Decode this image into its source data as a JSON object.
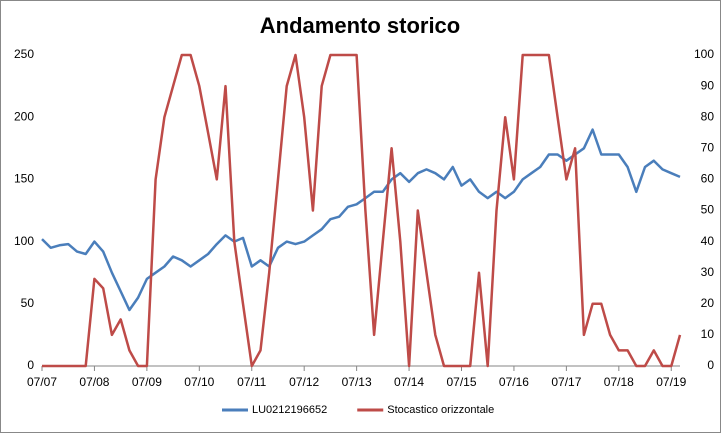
{
  "chart_data": {
    "type": "line",
    "title": "Andamento storico",
    "x": [
      0,
      2,
      4,
      6,
      8,
      10,
      12,
      14,
      16,
      18,
      20,
      22,
      24,
      26,
      28,
      30,
      32,
      34,
      36,
      38,
      40,
      42,
      44,
      46,
      48,
      50,
      52,
      54,
      56,
      58,
      60,
      62,
      64,
      66,
      68,
      70,
      72,
      74,
      76,
      78,
      80,
      82,
      84,
      86,
      88,
      90,
      92,
      94,
      96,
      98,
      100,
      102,
      104,
      106,
      108,
      110,
      112,
      114,
      116,
      118,
      120,
      122,
      124,
      126,
      128,
      130,
      132,
      134,
      136,
      138,
      140,
      142,
      144,
      146
    ],
    "xlim": [
      0,
      146
    ],
    "xticks": [
      {
        "value": 0,
        "label": "07/07"
      },
      {
        "value": 12,
        "label": "07/08"
      },
      {
        "value": 24,
        "label": "07/09"
      },
      {
        "value": 36,
        "label": "07/10"
      },
      {
        "value": 48,
        "label": "07/11"
      },
      {
        "value": 60,
        "label": "07/12"
      },
      {
        "value": 72,
        "label": "07/13"
      },
      {
        "value": 84,
        "label": "07/14"
      },
      {
        "value": 96,
        "label": "07/15"
      },
      {
        "value": 108,
        "label": "07/16"
      },
      {
        "value": 120,
        "label": "07/17"
      },
      {
        "value": 132,
        "label": "07/18"
      },
      {
        "value": 144,
        "label": "07/19"
      }
    ],
    "ylim": [
      0,
      250
    ],
    "yticks": [
      0,
      50,
      100,
      150,
      200,
      250
    ],
    "y2lim": [
      0,
      100
    ],
    "y2ticks": [
      0,
      10,
      20,
      30,
      40,
      50,
      60,
      70,
      80,
      90,
      100
    ],
    "grid": false,
    "legend": "bottom",
    "series": [
      {
        "name": "LU0212196652",
        "color": "#4a7ebb",
        "values": [
          102,
          95,
          97,
          98,
          92,
          90,
          100,
          92,
          75,
          60,
          45,
          55,
          70,
          75,
          80,
          88,
          85,
          80,
          85,
          90,
          98,
          105,
          100,
          103,
          80,
          85,
          80,
          95,
          100,
          98,
          100,
          105,
          110,
          118,
          120,
          128,
          130,
          135,
          140,
          140,
          150,
          155,
          148,
          155,
          158,
          155,
          150,
          160,
          145,
          150,
          140,
          135,
          140,
          135,
          140,
          150,
          155,
          160,
          170,
          170,
          165,
          170,
          175,
          190,
          170,
          170,
          170,
          160,
          140,
          160,
          165,
          158,
          155,
          152
        ]
      },
      {
        "name": "Stocastico orizzontale",
        "color": "#be4b48",
        "axis": "y2",
        "values": [
          0,
          0,
          0,
          0,
          0,
          0,
          28,
          25,
          10,
          15,
          5,
          0,
          0,
          60,
          80,
          90,
          100,
          100,
          90,
          75,
          60,
          90,
          40,
          20,
          0,
          5,
          30,
          60,
          90,
          100,
          80,
          50,
          90,
          100,
          100,
          100,
          100,
          50,
          10,
          40,
          70,
          40,
          0,
          50,
          30,
          10,
          0,
          0,
          0,
          0,
          30,
          0,
          50,
          80,
          60,
          100,
          100,
          100,
          100,
          80,
          60,
          70,
          10,
          20,
          20,
          10,
          5,
          5,
          0,
          0,
          5,
          0,
          0,
          10
        ]
      }
    ]
  }
}
